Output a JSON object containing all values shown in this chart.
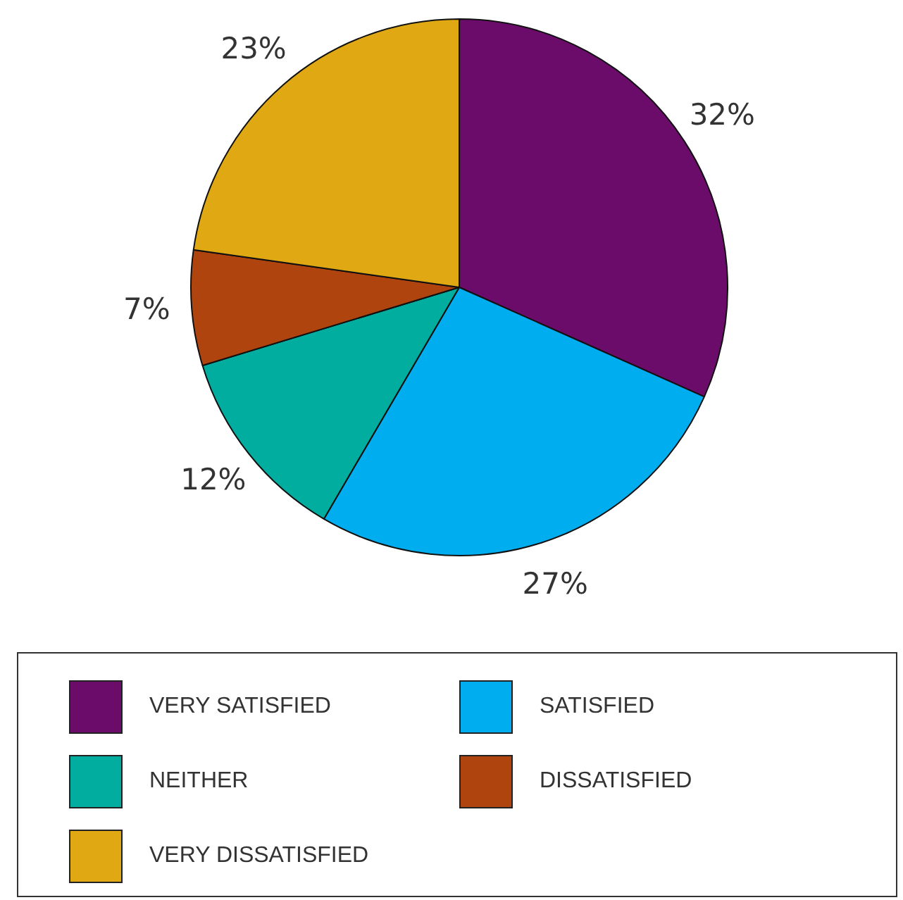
{
  "chart_data": {
    "type": "pie",
    "categories": [
      "VERY SATISFIED",
      "SATISFIED",
      "NEITHER",
      "DISSATISFIED",
      "VERY DISSATISFIED"
    ],
    "values": [
      32,
      27,
      12,
      7,
      23
    ],
    "colors": [
      "#6b0c6b",
      "#00adef",
      "#00ad9f",
      "#b0440f",
      "#e0a812"
    ],
    "value_labels": [
      "32%",
      "27%",
      "12%",
      "7%",
      "23%"
    ],
    "legend": "bottom"
  }
}
